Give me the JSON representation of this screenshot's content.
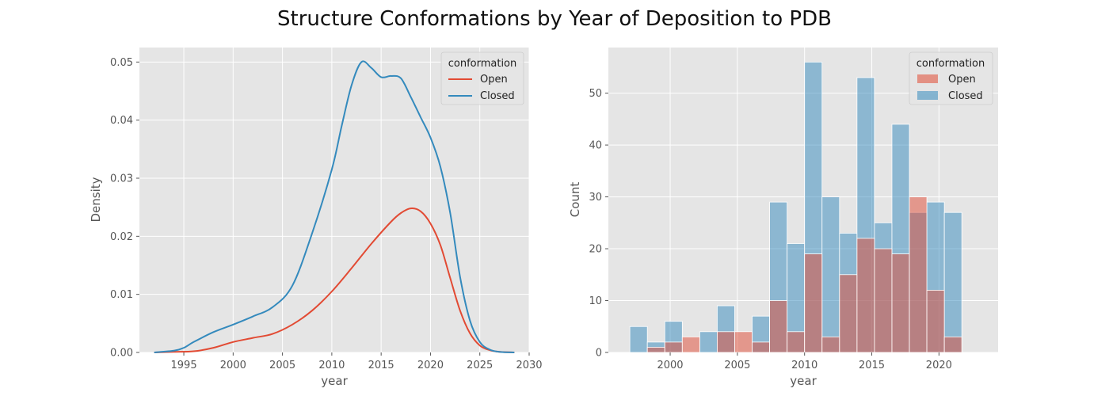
{
  "figure": {
    "suptitle": "Structure Conformations by Year of Deposition to PDB"
  },
  "colors": {
    "open": "#E24A33",
    "closed": "#348ABD",
    "panel_bg": "#E5E5E5",
    "grid": "#FFFFFF"
  },
  "chart_data": [
    {
      "type": "line",
      "title": "",
      "xlabel": "year",
      "ylabel": "Density",
      "xlim": [
        1990.5,
        2030
      ],
      "ylim": [
        0,
        0.0525
      ],
      "xticks": [
        1995,
        2000,
        2005,
        2010,
        2015,
        2020,
        2025,
        2030
      ],
      "yticks": [
        0.0,
        0.01,
        0.02,
        0.03,
        0.04,
        0.05
      ],
      "ytick_labels": [
        "0.00",
        "0.01",
        "0.02",
        "0.03",
        "0.04",
        "0.05"
      ],
      "grid": true,
      "legend": {
        "title": "conformation",
        "position": "top-right"
      },
      "series": [
        {
          "name": "Open",
          "color": "#E24A33",
          "x": [
            1992,
            1994,
            1996,
            1998,
            2000,
            2002,
            2004,
            2006,
            2008,
            2010,
            2012,
            2014,
            2016,
            2017,
            2018,
            2019,
            2020,
            2021,
            2022,
            2023,
            2024,
            2025,
            2026,
            2027,
            2028.5
          ],
          "y": [
            0.0,
            0.0001,
            0.0002,
            0.0008,
            0.0018,
            0.0025,
            0.0032,
            0.0048,
            0.0072,
            0.0105,
            0.0145,
            0.0187,
            0.0225,
            0.024,
            0.0248,
            0.0243,
            0.0222,
            0.0185,
            0.0128,
            0.0072,
            0.0033,
            0.0012,
            0.0004,
            0.0001,
            0.0
          ]
        },
        {
          "name": "Closed",
          "color": "#348ABD",
          "x": [
            1992,
            1994,
            1995,
            1996,
            1998,
            2000,
            2002,
            2004,
            2006,
            2008,
            2010,
            2011,
            2012,
            2013,
            2014,
            2015,
            2016,
            2017,
            2018,
            2019,
            2020,
            2021,
            2022,
            2023,
            2024,
            2025,
            2026,
            2027,
            2028.5
          ],
          "y": [
            0.0,
            0.0003,
            0.0008,
            0.0018,
            0.0035,
            0.0048,
            0.0062,
            0.0078,
            0.0115,
            0.0205,
            0.0315,
            0.039,
            0.046,
            0.05,
            0.049,
            0.0474,
            0.0476,
            0.0472,
            0.044,
            0.0405,
            0.037,
            0.032,
            0.024,
            0.013,
            0.0055,
            0.0018,
            0.0005,
            0.0001,
            0.0
          ]
        }
      ]
    },
    {
      "type": "bar",
      "title": "",
      "xlabel": "year",
      "ylabel": "Count",
      "xlim": [
        1995.4,
        2024.4
      ],
      "ylim": [
        0,
        58.8
      ],
      "xticks": [
        2000,
        2005,
        2010,
        2015,
        2020
      ],
      "yticks": [
        0,
        10,
        20,
        30,
        40,
        50
      ],
      "grid": true,
      "legend": {
        "title": "conformation",
        "position": "top-right"
      },
      "bin_edges": [
        1997.0,
        1998.3,
        1999.6,
        2000.9,
        2002.2,
        2003.5,
        2004.8,
        2006.1,
        2007.4,
        2008.7,
        2010.0,
        2011.3,
        2012.6,
        2013.9,
        2015.2,
        2016.5,
        2017.8,
        2019.1,
        2020.4,
        2021.7,
        2023.0
      ],
      "series": [
        {
          "name": "Closed",
          "color": "#348ABD",
          "values": [
            5,
            2,
            6,
            0,
            4,
            9,
            0,
            7,
            29,
            21,
            56,
            30,
            23,
            53,
            25,
            44,
            27,
            29,
            27,
            0
          ]
        },
        {
          "name": "Open",
          "color": "#E24A33",
          "values": [
            0,
            1,
            2,
            3,
            0,
            4,
            4,
            2,
            10,
            4,
            19,
            3,
            15,
            22,
            20,
            19,
            30,
            12,
            3,
            0
          ]
        }
      ]
    }
  ]
}
